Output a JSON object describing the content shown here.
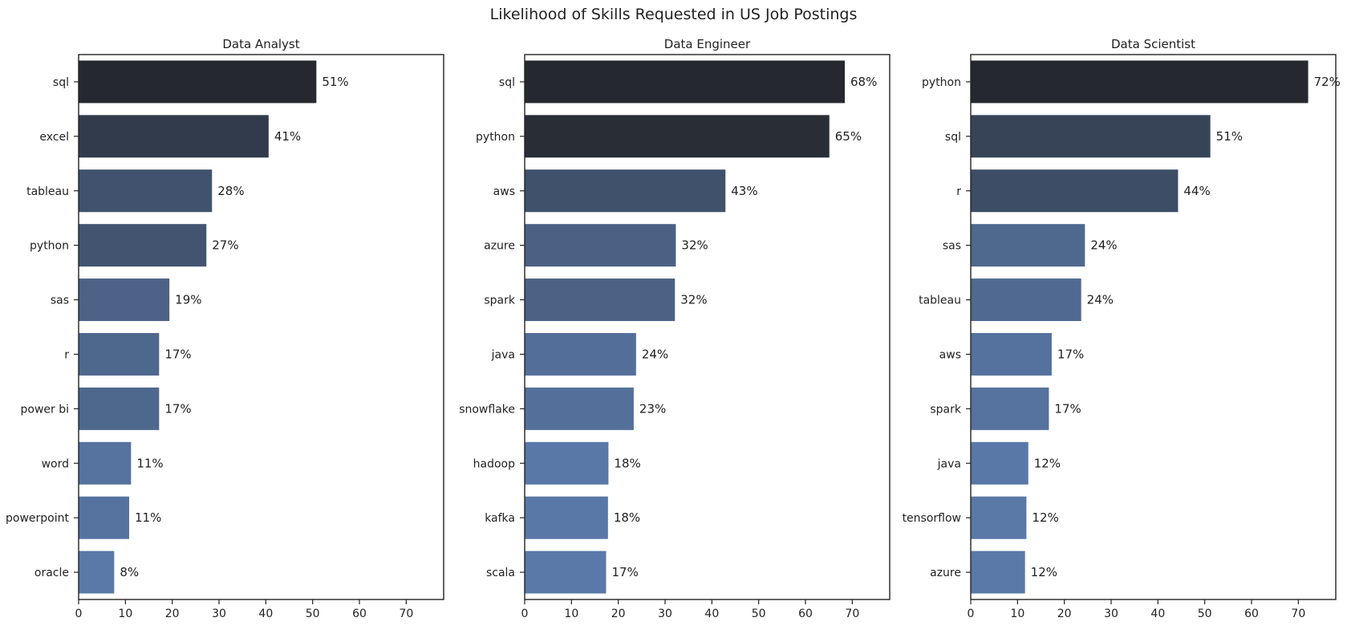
{
  "figure_title": "Likelihood of Skills Requested in US Job Postings",
  "chart_data": [
    {
      "type": "bar",
      "orientation": "horizontal",
      "title": "Data Analyst",
      "categories": [
        "sql",
        "excel",
        "tableau",
        "python",
        "sas",
        "r",
        "power bi",
        "word",
        "powerpoint",
        "oracle"
      ],
      "values": [
        50.8,
        40.6,
        28.5,
        27.3,
        19.4,
        17.2,
        17.2,
        11.2,
        10.8,
        7.6
      ],
      "labels": [
        "51%",
        "41%",
        "28%",
        "27%",
        "19%",
        "17%",
        "17%",
        "11%",
        "11%",
        "8%"
      ],
      "xlabel": "",
      "ylabel": "",
      "xlim": [
        0,
        78
      ],
      "xticks": [
        0,
        10,
        20,
        30,
        40,
        50,
        60,
        70
      ],
      "grid": false
    },
    {
      "type": "bar",
      "orientation": "horizontal",
      "title": "Data Engineer",
      "categories": [
        "sql",
        "python",
        "aws",
        "azure",
        "spark",
        "java",
        "snowflake",
        "hadoop",
        "kafka",
        "scala"
      ],
      "values": [
        68.4,
        65.1,
        42.9,
        32.3,
        32.1,
        23.8,
        23.3,
        17.9,
        17.8,
        17.4
      ],
      "labels": [
        "68%",
        "65%",
        "43%",
        "32%",
        "32%",
        "24%",
        "23%",
        "18%",
        "18%",
        "17%"
      ],
      "xlabel": "",
      "ylabel": "",
      "xlim": [
        0,
        78
      ],
      "xticks": [
        0,
        10,
        20,
        30,
        40,
        50,
        60,
        70
      ],
      "grid": false
    },
    {
      "type": "bar",
      "orientation": "horizontal",
      "title": "Data Scientist",
      "categories": [
        "python",
        "sql",
        "r",
        "sas",
        "tableau",
        "aws",
        "spark",
        "java",
        "tensorflow",
        "azure"
      ],
      "values": [
        72.1,
        51.2,
        44.3,
        24.4,
        23.6,
        17.3,
        16.7,
        12.3,
        11.9,
        11.6
      ],
      "labels": [
        "72%",
        "51%",
        "44%",
        "24%",
        "24%",
        "17%",
        "17%",
        "12%",
        "12%",
        "12%"
      ],
      "xlabel": "",
      "ylabel": "",
      "xlim": [
        0,
        78
      ],
      "xticks": [
        0,
        10,
        20,
        30,
        40,
        50,
        60,
        70
      ],
      "grid": false
    }
  ],
  "colors": {
    "bar_dark": "#25282e",
    "bar_light": "#5a79a8",
    "axis": "#222222",
    "background": "#ffffff"
  }
}
